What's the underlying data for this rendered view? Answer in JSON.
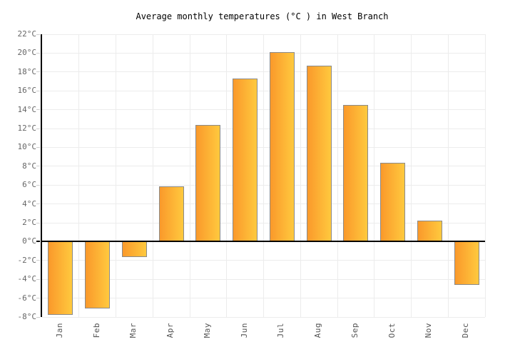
{
  "chart_data": {
    "type": "bar",
    "title": "Average monthly temperatures (°C ) in West Branch",
    "categories": [
      "Jan",
      "Feb",
      "Mar",
      "Apr",
      "May",
      "Jun",
      "Jul",
      "Aug",
      "Sep",
      "Oct",
      "Nov",
      "Dec"
    ],
    "values": [
      -7.8,
      -7.1,
      -1.6,
      5.9,
      12.4,
      17.3,
      20.1,
      18.7,
      14.5,
      8.4,
      2.2,
      -4.6
    ],
    "xlabel": "",
    "ylabel": "",
    "ylim": [
      -8,
      22
    ],
    "ytick_step": 2,
    "ytick_suffix": "°C",
    "grid": true,
    "legend_position": "none",
    "colors": {
      "bar_gradient_left": "#fa992b",
      "bar_gradient_right": "#ffc93e",
      "bar_border": "#8a8a8a",
      "gridline": "#ececec",
      "zero_line": "#000000",
      "axis": "#000000",
      "tick_label": "#666666",
      "month_label": "#555555",
      "title_color": "#000000",
      "background": "#ffffff"
    }
  }
}
